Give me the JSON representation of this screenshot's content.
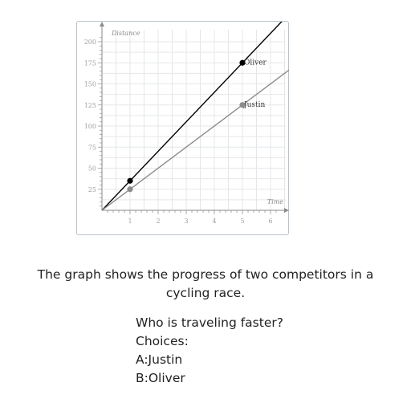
{
  "chart_data": {
    "type": "line",
    "xlabel": "Time",
    "ylabel": "Distance",
    "xlim": [
      0,
      6.5
    ],
    "ylim": [
      0,
      210
    ],
    "x_ticks": [
      1,
      2,
      3,
      4,
      5,
      6
    ],
    "y_ticks": [
      25,
      50,
      75,
      100,
      125,
      150,
      175,
      200
    ],
    "grid": true,
    "series": [
      {
        "name": "Oliver",
        "color": "#000000",
        "points": [
          [
            0,
            0
          ],
          [
            7,
            245
          ]
        ],
        "marked_points": [
          [
            1,
            35
          ],
          [
            5,
            175
          ]
        ],
        "label_at": [
          5,
          175
        ]
      },
      {
        "name": "Justin",
        "color": "#8c8c8c",
        "points": [
          [
            0,
            0
          ],
          [
            7,
            175
          ]
        ],
        "marked_points": [
          [
            1,
            25
          ],
          [
            5,
            125
          ]
        ],
        "label_at": [
          5,
          125
        ]
      }
    ]
  },
  "question": {
    "prompt": "The graph shows the progress of two competitors in a cycling race.",
    "ask": "Who is traveling faster?",
    "choices_label": "Choices:",
    "choices": [
      "A:Justin",
      "B:Oliver"
    ]
  }
}
